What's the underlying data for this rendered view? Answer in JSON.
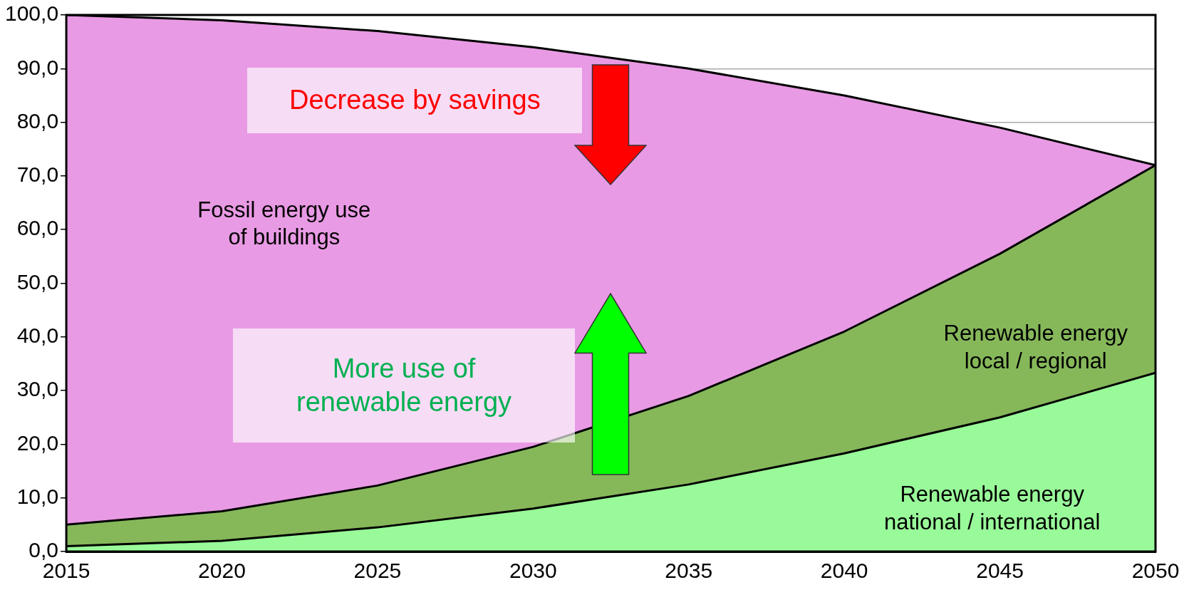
{
  "chart_data": {
    "type": "area",
    "stacked": true,
    "x": [
      2015,
      2020,
      2025,
      2030,
      2035,
      2040,
      2045,
      2050
    ],
    "series": [
      {
        "name": "Renewable energy national / international",
        "color": "#99fa99",
        "values": [
          1,
          2,
          4.5,
          8,
          12.5,
          18.3,
          25,
          33.3
        ]
      },
      {
        "name": "Renewable energy local / regional",
        "color": "#86b85a",
        "values": [
          4,
          5.5,
          7.8,
          11.5,
          16.5,
          22.7,
          30.5,
          38.7
        ]
      },
      {
        "name": "Fossil energy use of buildings",
        "color": "#e99ae4",
        "values": [
          95,
          91.5,
          84.7,
          74.5,
          61,
          44,
          23.5,
          0
        ]
      }
    ],
    "xlim": [
      2015,
      2050
    ],
    "xticks": [
      2015,
      2020,
      2025,
      2030,
      2035,
      2040,
      2045,
      2050
    ],
    "ylim": [
      0,
      100
    ],
    "yticks": [
      {
        "value": 0,
        "label": "0,0"
      },
      {
        "value": 10,
        "label": "10,0"
      },
      {
        "value": 20,
        "label": "20,0"
      },
      {
        "value": 30,
        "label": "30,0"
      },
      {
        "value": 40,
        "label": "40,0"
      },
      {
        "value": 50,
        "label": "50,0"
      },
      {
        "value": 60,
        "label": "60,0"
      },
      {
        "value": 70,
        "label": "70,0"
      },
      {
        "value": 80,
        "label": "80,0"
      },
      {
        "value": 90,
        "label": "90,0"
      },
      {
        "value": 100,
        "label": "100,0"
      }
    ],
    "grid": "y",
    "legend": false,
    "annotations": [
      "Decrease by savings",
      "More use of renewable energy"
    ]
  }
}
